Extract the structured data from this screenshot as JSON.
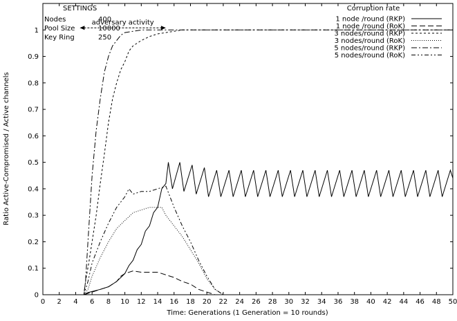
{
  "chart_data": {
    "type": "line",
    "xlabel": "Time: Generations (1 Generation = 10 rounds)",
    "ylabel": "Ratio Active-Compromised / Active channels",
    "xlim": [
      0,
      50
    ],
    "ylim": [
      0,
      1.1
    ],
    "xticks": [
      0,
      2,
      4,
      6,
      8,
      10,
      12,
      14,
      16,
      18,
      20,
      22,
      24,
      26,
      28,
      30,
      32,
      34,
      36,
      38,
      40,
      42,
      44,
      46,
      48,
      50
    ],
    "yticks": [
      0,
      0.1,
      0.2,
      0.3,
      0.4,
      0.5,
      0.6,
      0.7,
      0.8,
      0.9,
      1
    ],
    "grid": false,
    "legend": {
      "title": "Corruption rate",
      "placement": "top-right"
    },
    "settings": {
      "title": "SETTINGS",
      "rows": [
        {
          "label": "Nodes",
          "value": "400"
        },
        {
          "label": "Pool Size",
          "value": "10000"
        },
        {
          "label": "Key Ring",
          "value": "250"
        }
      ]
    },
    "annotation": {
      "text": "adversary activity",
      "x_start": 4.5,
      "x_end": 15
    },
    "series": [
      {
        "name": "1 node /round (RKP)",
        "dash": "none",
        "points": [
          [
            0,
            0
          ],
          [
            5,
            0
          ],
          [
            5.5,
            0.008
          ],
          [
            6,
            0.012
          ],
          [
            7,
            0.02
          ],
          [
            8,
            0.03
          ],
          [
            9,
            0.05
          ],
          [
            10,
            0.08
          ],
          [
            10.5,
            0.11
          ],
          [
            11,
            0.13
          ],
          [
            11.5,
            0.17
          ],
          [
            12,
            0.19
          ],
          [
            12.5,
            0.24
          ],
          [
            13,
            0.26
          ],
          [
            13.5,
            0.31
          ],
          [
            14,
            0.33
          ],
          [
            14.5,
            0.4
          ],
          [
            15,
            0.42
          ],
          [
            15.3,
            0.5
          ],
          [
            15.8,
            0.4
          ],
          [
            16.7,
            0.5
          ],
          [
            17.2,
            0.39
          ],
          [
            18.2,
            0.49
          ],
          [
            18.7,
            0.38
          ],
          [
            19.7,
            0.48
          ],
          [
            20.2,
            0.37
          ],
          [
            21.2,
            0.47
          ],
          [
            21.7,
            0.37
          ],
          [
            22.7,
            0.47
          ],
          [
            23.2,
            0.37
          ],
          [
            24.2,
            0.47
          ],
          [
            24.7,
            0.37
          ],
          [
            25.7,
            0.47
          ],
          [
            26.2,
            0.37
          ],
          [
            27.2,
            0.47
          ],
          [
            27.7,
            0.37
          ],
          [
            28.7,
            0.47
          ],
          [
            29.2,
            0.37
          ],
          [
            30.2,
            0.47
          ],
          [
            30.7,
            0.37
          ],
          [
            31.7,
            0.47
          ],
          [
            32.2,
            0.37
          ],
          [
            33.2,
            0.47
          ],
          [
            33.7,
            0.37
          ],
          [
            34.7,
            0.47
          ],
          [
            35.2,
            0.37
          ],
          [
            36.2,
            0.47
          ],
          [
            36.7,
            0.37
          ],
          [
            37.7,
            0.47
          ],
          [
            38.2,
            0.37
          ],
          [
            39.2,
            0.47
          ],
          [
            39.7,
            0.37
          ],
          [
            40.7,
            0.47
          ],
          [
            41.2,
            0.37
          ],
          [
            42.2,
            0.47
          ],
          [
            42.7,
            0.37
          ],
          [
            43.7,
            0.47
          ],
          [
            44.2,
            0.37
          ],
          [
            45.2,
            0.47
          ],
          [
            45.7,
            0.37
          ],
          [
            46.7,
            0.47
          ],
          [
            47.2,
            0.37
          ],
          [
            48.2,
            0.47
          ],
          [
            48.7,
            0.37
          ],
          [
            49.7,
            0.47
          ],
          [
            50,
            0.44
          ]
        ]
      },
      {
        "name": "1 node /round (RoK)",
        "dash": "8,4",
        "points": [
          [
            0,
            0
          ],
          [
            5,
            0
          ],
          [
            5.5,
            0.005
          ],
          [
            6,
            0.01
          ],
          [
            7,
            0.02
          ],
          [
            8,
            0.03
          ],
          [
            9,
            0.05
          ],
          [
            9.5,
            0.07
          ],
          [
            10,
            0.08
          ],
          [
            11,
            0.09
          ],
          [
            12,
            0.085
          ],
          [
            13,
            0.085
          ],
          [
            14,
            0.085
          ],
          [
            15,
            0.075
          ],
          [
            16,
            0.065
          ],
          [
            17,
            0.05
          ],
          [
            18,
            0.04
          ],
          [
            19,
            0.02
          ],
          [
            20,
            0.01
          ],
          [
            21,
            0
          ],
          [
            50,
            0
          ]
        ]
      },
      {
        "name": "3 nodes/round (RKP)",
        "dash": "3,3",
        "points": [
          [
            0,
            0
          ],
          [
            5,
            0
          ],
          [
            5.2,
            0.05
          ],
          [
            5.6,
            0.12
          ],
          [
            6,
            0.2
          ],
          [
            6.5,
            0.3
          ],
          [
            7,
            0.42
          ],
          [
            7.5,
            0.53
          ],
          [
            8,
            0.65
          ],
          [
            8.5,
            0.74
          ],
          [
            9,
            0.8
          ],
          [
            9.5,
            0.85
          ],
          [
            10,
            0.88
          ],
          [
            10.5,
            0.92
          ],
          [
            11,
            0.94
          ],
          [
            12,
            0.96
          ],
          [
            13,
            0.975
          ],
          [
            14,
            0.985
          ],
          [
            15,
            0.99
          ],
          [
            16,
            0.995
          ],
          [
            17,
            1.0
          ],
          [
            50,
            1.0
          ]
        ]
      },
      {
        "name": "3 nodes/round (RoK)",
        "dash": "1,2",
        "points": [
          [
            0,
            0
          ],
          [
            5,
            0
          ],
          [
            5.5,
            0.02
          ],
          [
            6,
            0.07
          ],
          [
            7,
            0.14
          ],
          [
            8,
            0.2
          ],
          [
            9,
            0.25
          ],
          [
            10,
            0.28
          ],
          [
            11,
            0.31
          ],
          [
            12,
            0.32
          ],
          [
            13,
            0.33
          ],
          [
            14,
            0.33
          ],
          [
            14.5,
            0.33
          ],
          [
            15,
            0.3
          ],
          [
            16,
            0.26
          ],
          [
            17,
            0.22
          ],
          [
            18,
            0.17
          ],
          [
            19,
            0.12
          ],
          [
            20,
            0.06
          ],
          [
            21,
            0.02
          ],
          [
            22,
            0
          ],
          [
            50,
            0
          ]
        ]
      },
      {
        "name": "5 nodes/round (RKP)",
        "dash": "8,3,2,3",
        "points": [
          [
            0,
            0
          ],
          [
            5,
            0
          ],
          [
            5.2,
            0.05
          ],
          [
            5.5,
            0.2
          ],
          [
            5.8,
            0.35
          ],
          [
            6,
            0.45
          ],
          [
            6.5,
            0.62
          ],
          [
            7,
            0.74
          ],
          [
            7.5,
            0.84
          ],
          [
            8,
            0.9
          ],
          [
            8.5,
            0.94
          ],
          [
            9,
            0.96
          ],
          [
            9.5,
            0.98
          ],
          [
            10,
            0.99
          ],
          [
            11,
            0.995
          ],
          [
            12,
            1.0
          ],
          [
            50,
            1.0
          ]
        ]
      },
      {
        "name": "5 nodes/round (RoK)",
        "dash": "6,3,2,3,2,3",
        "points": [
          [
            0,
            0
          ],
          [
            5,
            0
          ],
          [
            5.5,
            0.05
          ],
          [
            6,
            0.12
          ],
          [
            7,
            0.2
          ],
          [
            8,
            0.27
          ],
          [
            9,
            0.33
          ],
          [
            10,
            0.37
          ],
          [
            10.5,
            0.4
          ],
          [
            11,
            0.38
          ],
          [
            12,
            0.39
          ],
          [
            13,
            0.39
          ],
          [
            14,
            0.4
          ],
          [
            15,
            0.41
          ],
          [
            16,
            0.33
          ],
          [
            17,
            0.26
          ],
          [
            18,
            0.2
          ],
          [
            19,
            0.13
          ],
          [
            20,
            0.07
          ],
          [
            21,
            0.02
          ],
          [
            22,
            0
          ],
          [
            50,
            0
          ]
        ]
      }
    ]
  }
}
